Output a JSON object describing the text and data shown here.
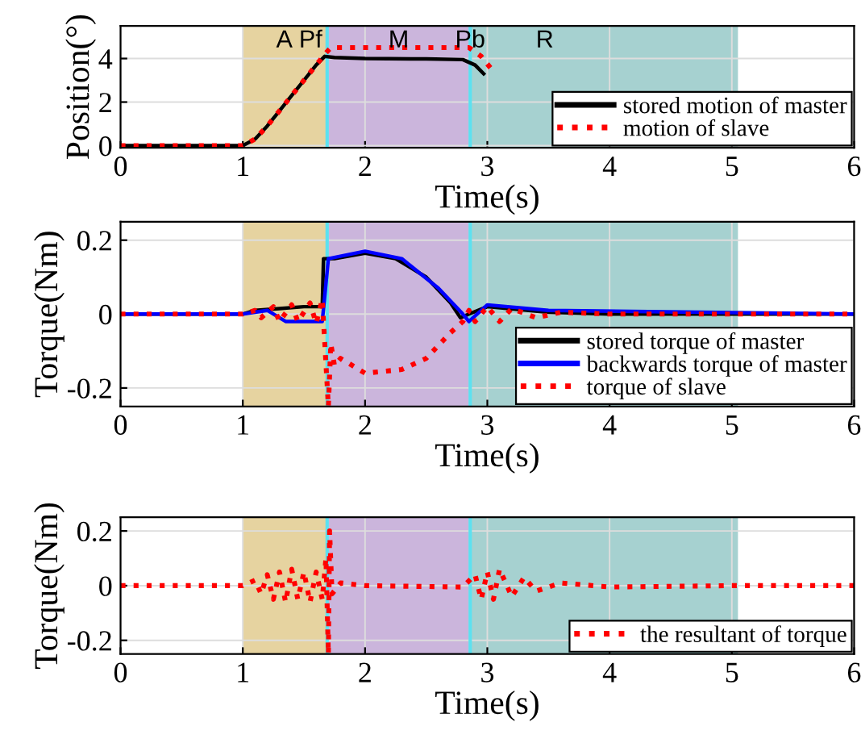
{
  "chart_data": [
    {
      "type": "line",
      "xlabel": "Time(s)",
      "ylabel": "Position(°)",
      "xlim": [
        0,
        6
      ],
      "xticks": [
        0,
        1,
        2,
        3,
        4,
        5,
        6
      ],
      "ylim": [
        -0.1,
        5.5
      ],
      "yticks": [
        0,
        2,
        4
      ],
      "grid": true,
      "legend": "bottom right",
      "series": [
        {
          "name": "stored motion of master",
          "color": "#000000",
          "line_style": "solid",
          "x": [
            0,
            1.0,
            1.1,
            1.2,
            1.3,
            1.4,
            1.5,
            1.6,
            1.67,
            1.75,
            2.0,
            2.5,
            2.8,
            2.9,
            2.97
          ],
          "values": [
            0,
            0,
            0.3,
            0.9,
            1.6,
            2.3,
            3.0,
            3.7,
            4.1,
            4.05,
            4.0,
            3.98,
            3.95,
            3.7,
            3.3
          ]
        },
        {
          "name": "motion of slave",
          "color": "#ff0000",
          "line_style": "dotted",
          "x": [
            0,
            1.0,
            1.1,
            1.2,
            1.3,
            1.4,
            1.5,
            1.6,
            1.67,
            1.72,
            2.8,
            2.85,
            2.95,
            3.05
          ],
          "values": [
            0,
            0,
            0.3,
            0.9,
            1.6,
            2.3,
            3.0,
            3.7,
            4.2,
            4.5,
            4.5,
            4.5,
            4.1,
            3.4
          ]
        }
      ],
      "bands": [
        {
          "axis": "x",
          "from": 1.0,
          "to": 1.68,
          "label": "A",
          "color": "#e6d3a0"
        },
        {
          "axis": "x",
          "from": 1.7,
          "to": 2.85,
          "label": "M",
          "color": "#cbb5dc"
        },
        {
          "axis": "x",
          "from": 2.87,
          "to": 5.05,
          "label": "R",
          "color": "#a6d1d0"
        }
      ],
      "ref_lines": [
        {
          "axis": "x",
          "value": 1.69,
          "label": "Pf",
          "color": "#5ce1f0"
        },
        {
          "axis": "x",
          "value": 2.86,
          "label": "Pb",
          "color": "#5ce1f0"
        }
      ]
    },
    {
      "type": "line",
      "xlabel": "Time(s)",
      "ylabel": "Torque(Nm)",
      "xlim": [
        0,
        6
      ],
      "xticks": [
        0,
        1,
        2,
        3,
        4,
        5,
        6
      ],
      "ylim": [
        -0.25,
        0.25
      ],
      "yticks": [
        -0.2,
        0,
        0.2
      ],
      "grid": true,
      "legend": "bottom right",
      "series": [
        {
          "name": "stored torque of master",
          "color": "#000000",
          "line_style": "solid",
          "x": [
            0,
            1.0,
            1.1,
            1.3,
            1.5,
            1.65,
            1.66,
            1.75,
            2.0,
            2.25,
            2.5,
            2.7,
            2.78,
            2.85,
            3.0,
            3.5,
            4.0,
            6.0
          ],
          "values": [
            0,
            0,
            0.01,
            0.015,
            0.02,
            0.02,
            0.15,
            0.15,
            0.165,
            0.15,
            0.1,
            0.03,
            -0.01,
            0,
            0.02,
            0.005,
            0,
            0
          ]
        },
        {
          "name": "backwards torque of master",
          "color": "#0000ff",
          "line_style": "solid",
          "x": [
            0,
            1.0,
            1.2,
            1.35,
            1.5,
            1.65,
            1.7,
            2.0,
            2.3,
            2.6,
            2.8,
            2.85,
            3.0,
            3.5,
            6.0
          ],
          "values": [
            0,
            0,
            0.01,
            -0.02,
            -0.02,
            -0.02,
            0.15,
            0.17,
            0.15,
            0.07,
            0,
            -0.02,
            0.025,
            0.01,
            0
          ]
        },
        {
          "name": "torque of slave",
          "color": "#ff0000",
          "line_style": "dotted",
          "x": [
            0,
            1.0,
            1.1,
            1.15,
            1.25,
            1.3,
            1.4,
            1.45,
            1.55,
            1.6,
            1.65,
            1.7,
            1.72,
            1.75,
            1.8,
            2.0,
            2.3,
            2.5,
            2.7,
            2.8,
            2.85,
            2.9,
            3.0,
            3.1,
            3.2,
            3.4,
            3.6,
            4.0,
            6.0
          ],
          "values": [
            0,
            0,
            0.01,
            -0.01,
            0.02,
            -0.02,
            0.025,
            -0.02,
            0.03,
            -0.025,
            0.04,
            -0.25,
            -0.08,
            -0.14,
            -0.12,
            -0.16,
            -0.15,
            -0.12,
            -0.05,
            -0.02,
            0.01,
            -0.02,
            0.02,
            -0.02,
            0.015,
            -0.01,
            0.005,
            0,
            0
          ]
        }
      ],
      "bands": [
        {
          "axis": "x",
          "from": 1.0,
          "to": 1.68,
          "color": "#e6d3a0"
        },
        {
          "axis": "x",
          "from": 1.7,
          "to": 2.85,
          "color": "#cbb5dc"
        },
        {
          "axis": "x",
          "from": 2.87,
          "to": 5.05,
          "color": "#a6d1d0"
        }
      ],
      "ref_lines": [
        {
          "axis": "x",
          "value": 1.69,
          "color": "#5ce1f0"
        },
        {
          "axis": "x",
          "value": 2.86,
          "color": "#5ce1f0"
        }
      ]
    },
    {
      "type": "line",
      "xlabel": "Time(s)",
      "ylabel": "Torque(Nm)",
      "xlim": [
        0,
        6
      ],
      "xticks": [
        0,
        1,
        2,
        3,
        4,
        5,
        6
      ],
      "ylim": [
        -0.25,
        0.25
      ],
      "yticks": [
        -0.2,
        0,
        0.2
      ],
      "grid": true,
      "legend": "bottom right",
      "series": [
        {
          "name": "the resultant of torque",
          "color": "#ff0000",
          "line_style": "dotted",
          "x": [
            0,
            1.0,
            1.1,
            1.15,
            1.2,
            1.25,
            1.3,
            1.35,
            1.4,
            1.45,
            1.5,
            1.55,
            1.6,
            1.65,
            1.68,
            1.7,
            1.71,
            1.73,
            1.8,
            2.0,
            2.8,
            2.9,
            2.95,
            3.0,
            3.05,
            3.1,
            3.2,
            3.3,
            3.4,
            3.6,
            4.0,
            5.0,
            6.0
          ],
          "values": [
            0,
            0,
            0.02,
            -0.03,
            0.04,
            -0.05,
            0.05,
            -0.06,
            0.06,
            -0.05,
            0.05,
            -0.06,
            0.05,
            -0.05,
            0.1,
            -0.25,
            0.2,
            -0.03,
            0.01,
            0,
            -0.005,
            0.04,
            -0.05,
            0.05,
            -0.05,
            0.06,
            -0.04,
            0.03,
            -0.02,
            0.01,
            -0.005,
            0,
            0
          ]
        }
      ],
      "bands": [
        {
          "axis": "x",
          "from": 1.0,
          "to": 1.68,
          "color": "#e6d3a0"
        },
        {
          "axis": "x",
          "from": 1.7,
          "to": 2.85,
          "color": "#cbb5dc"
        },
        {
          "axis": "x",
          "from": 2.87,
          "to": 5.05,
          "color": "#a6d1d0"
        }
      ],
      "ref_lines": [
        {
          "axis": "x",
          "value": 1.69,
          "color": "#5ce1f0"
        },
        {
          "axis": "x",
          "value": 2.86,
          "color": "#5ce1f0"
        }
      ]
    }
  ]
}
